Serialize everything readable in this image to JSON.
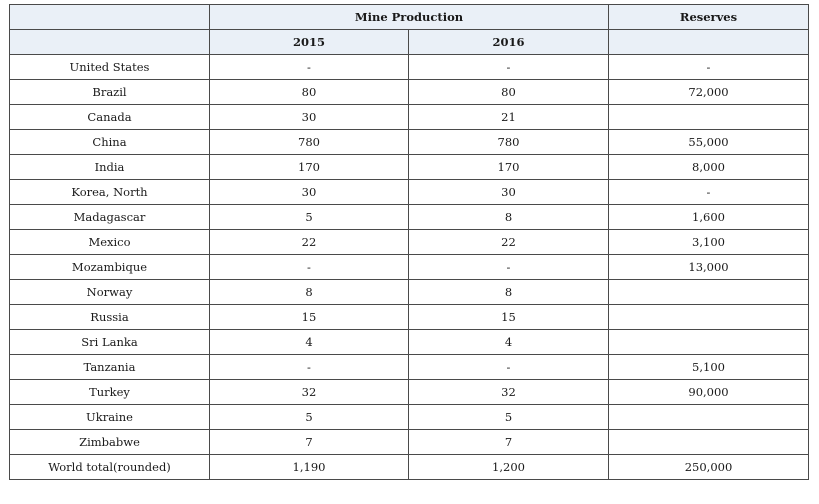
{
  "header": {
    "mine_production": "Mine Production",
    "reserves": "Reserves",
    "year_2015": "2015",
    "year_2016": "2016"
  },
  "rows": [
    {
      "country": "United States",
      "y2015": "-",
      "y2016": "-",
      "reserves": "-"
    },
    {
      "country": "Brazil",
      "y2015": "80",
      "y2016": "80",
      "reserves": "72,000"
    },
    {
      "country": "Canada",
      "y2015": "30",
      "y2016": "21",
      "reserves": ""
    },
    {
      "country": "China",
      "y2015": "780",
      "y2016": "780",
      "reserves": "55,000"
    },
    {
      "country": "India",
      "y2015": "170",
      "y2016": "170",
      "reserves": "8,000"
    },
    {
      "country": "Korea, North",
      "y2015": "30",
      "y2016": "30",
      "reserves": "-"
    },
    {
      "country": "Madagascar",
      "y2015": "5",
      "y2016": "8",
      "reserves": "1,600"
    },
    {
      "country": "Mexico",
      "y2015": "22",
      "y2016": "22",
      "reserves": "3,100"
    },
    {
      "country": "Mozambique",
      "y2015": "-",
      "y2016": "-",
      "reserves": "13,000"
    },
    {
      "country": "Norway",
      "y2015": "8",
      "y2016": "8",
      "reserves": ""
    },
    {
      "country": "Russia",
      "y2015": "15",
      "y2016": "15",
      "reserves": ""
    },
    {
      "country": "Sri Lanka",
      "y2015": "4",
      "y2016": "4",
      "reserves": ""
    },
    {
      "country": "Tanzania",
      "y2015": "-",
      "y2016": "-",
      "reserves": "5,100"
    },
    {
      "country": "Turkey",
      "y2015": "32",
      "y2016": "32",
      "reserves": "90,000"
    },
    {
      "country": "Ukraine",
      "y2015": "5",
      "y2016": "5",
      "reserves": ""
    },
    {
      "country": "Zimbabwe",
      "y2015": "7",
      "y2016": "7",
      "reserves": ""
    }
  ],
  "total": {
    "country": "World total(rounded)",
    "y2015": "1,190",
    "y2016": "1,200",
    "reserves": "250,000"
  }
}
